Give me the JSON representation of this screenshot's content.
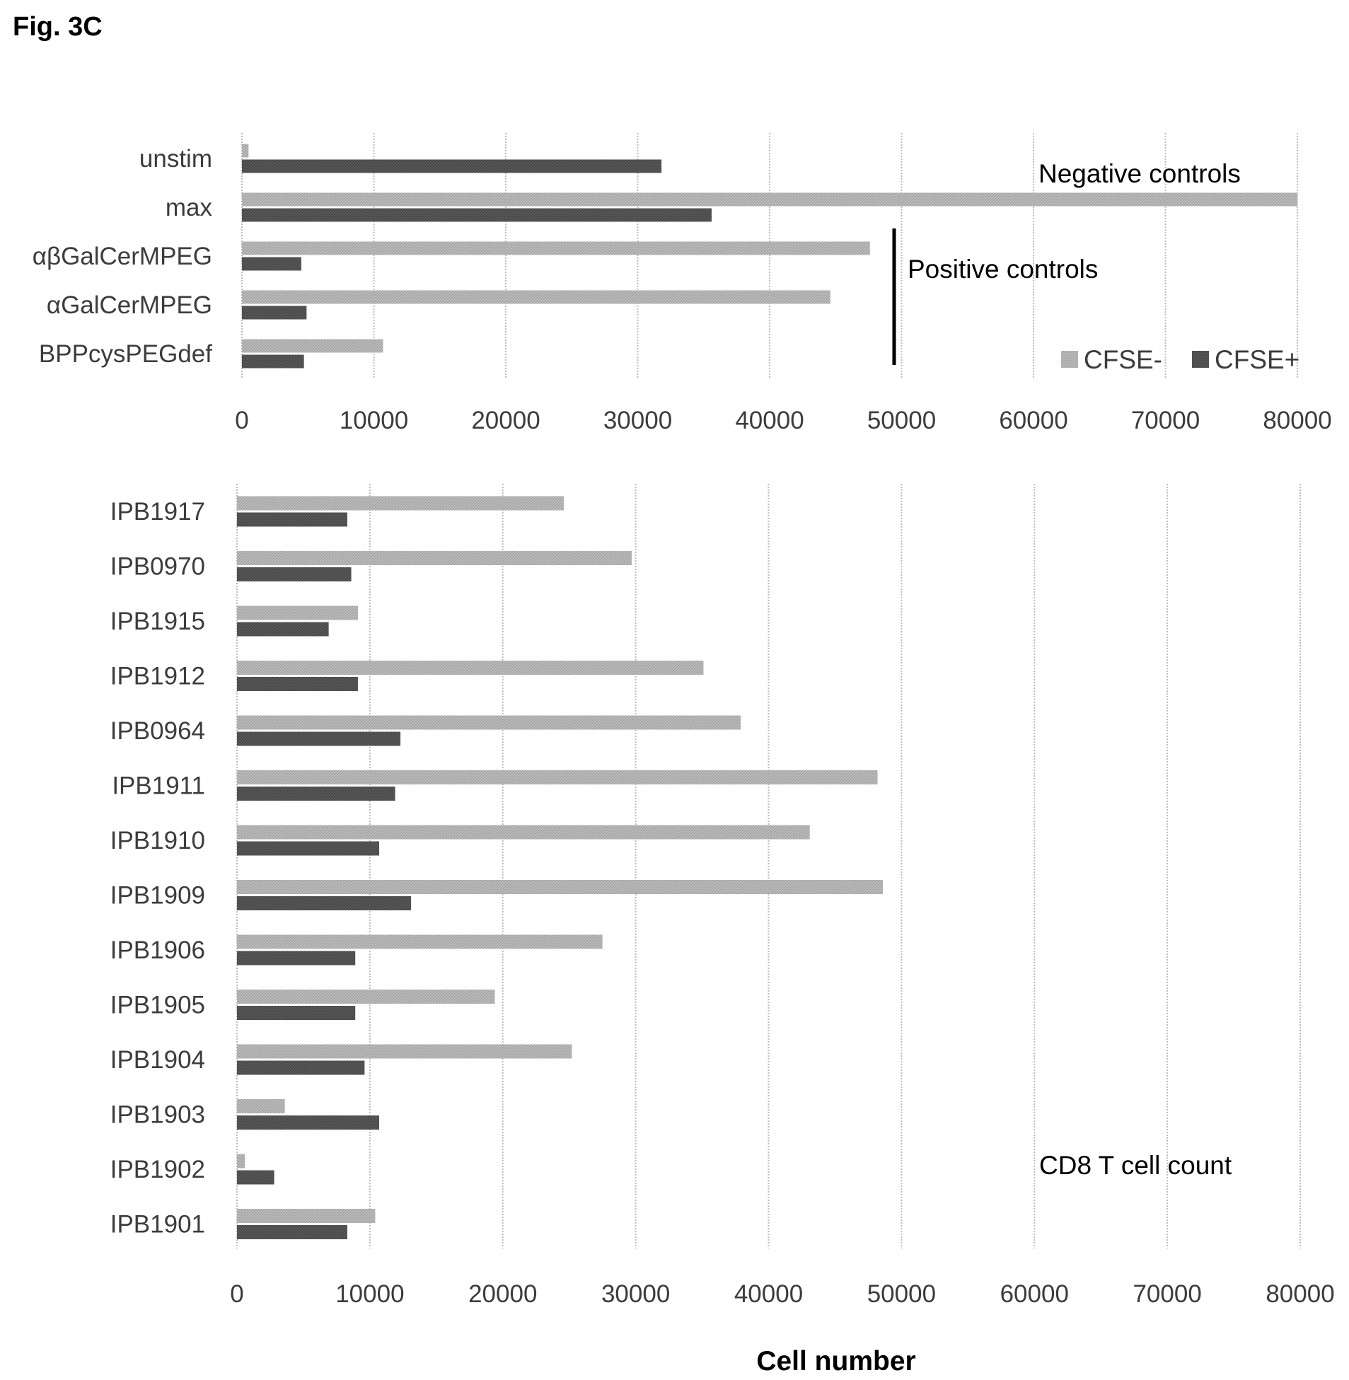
{
  "figure_label": "Fig. 3C",
  "xlabel": "Cell number",
  "colors": {
    "CFSE-": "#b4b4b4",
    "CFSE+": "#555555"
  },
  "chart_data": [
    {
      "type": "bar",
      "orientation": "horizontal",
      "categories": [
        "unstim",
        "max",
        "αβGalCerMPEG",
        "αGalCerMPEG",
        "BPPcysPEGdef"
      ],
      "series": [
        {
          "name": "CFSE-",
          "values": [
            500,
            80000,
            47600,
            44600,
            10700
          ]
        },
        {
          "name": "CFSE+",
          "values": [
            31800,
            35600,
            4500,
            4900,
            4700
          ]
        }
      ],
      "xlim": [
        0,
        80000
      ],
      "xticks": [
        0,
        10000,
        20000,
        30000,
        40000,
        50000,
        60000,
        70000,
        80000
      ],
      "grid": true,
      "legend": "bottom-right",
      "annotations": [
        "Negative controls",
        "Positive controls"
      ]
    },
    {
      "type": "bar",
      "orientation": "horizontal",
      "categories": [
        "IPB1917",
        "IPB0970",
        "IPB1915",
        "IPB1912",
        "IPB0964",
        "IPB1911",
        "IPB1910",
        "IPB1909",
        "IPB1906",
        "IPB1905",
        "IPB1904",
        "IPB1903",
        "IPB1902",
        "IPB1901"
      ],
      "series": [
        {
          "name": "CFSE-",
          "values": [
            24600,
            29700,
            9100,
            35100,
            37900,
            48200,
            43100,
            48600,
            27500,
            19400,
            25200,
            3600,
            600,
            10400
          ]
        },
        {
          "name": "CFSE+",
          "values": [
            8300,
            8600,
            6900,
            9100,
            12300,
            11900,
            10700,
            13100,
            8900,
            8900,
            9600,
            10700,
            2800,
            8300
          ]
        }
      ],
      "xlim": [
        0,
        80000
      ],
      "xticks": [
        0,
        10000,
        20000,
        30000,
        40000,
        50000,
        60000,
        70000,
        80000
      ],
      "grid": true,
      "annotations": [
        "CD8 T cell count"
      ]
    }
  ]
}
